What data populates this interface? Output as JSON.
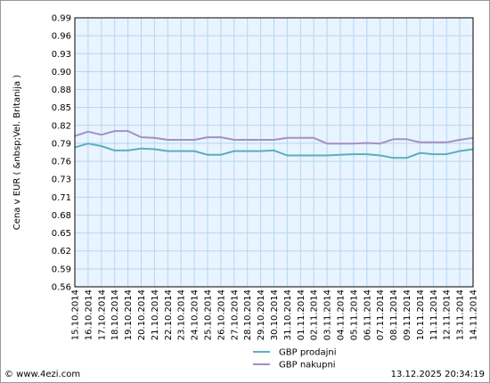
{
  "chart_data": {
    "type": "line",
    "ylabel": "Cena v EUR ( &nbsp;Vel. Britanija )",
    "xlabel": "",
    "ylim": [
      0.56,
      0.99
    ],
    "yticks": [
      "0.99",
      "0.96",
      "0.93",
      "0.90",
      "0.88",
      "0.85",
      "0.82",
      "0.79",
      "0.76",
      "0.73",
      "0.71",
      "0.68",
      "0.65",
      "0.62",
      "0.59",
      "0.56"
    ],
    "grid": true,
    "legend_position": "bottom",
    "categories": [
      "15.10.2014",
      "16.10.2014",
      "17.10.2014",
      "18.10.2014",
      "19.10.2014",
      "20.10.2014",
      "21.10.2014",
      "22.10.2014",
      "23.10.2014",
      "24.10.2014",
      "25.10.2014",
      "26.10.2014",
      "27.10.2014",
      "28.10.2014",
      "29.10.2014",
      "30.10.2014",
      "31.10.2014",
      "01.11.2014",
      "02.11.2014",
      "03.11.2014",
      "04.11.2014",
      "05.11.2014",
      "06.11.2014",
      "07.11.2014",
      "08.11.2014",
      "09.11.2014",
      "10.11.2014",
      "11.11.2014",
      "12.11.2014",
      "13.11.2014",
      "14.11.2014"
    ],
    "series": [
      {
        "name": "GBP prodajni",
        "color": "#5aaebf",
        "values": [
          0.783,
          0.789,
          0.785,
          0.778,
          0.778,
          0.781,
          0.78,
          0.777,
          0.777,
          0.777,
          0.771,
          0.771,
          0.777,
          0.777,
          0.777,
          0.778,
          0.77,
          0.77,
          0.77,
          0.77,
          0.771,
          0.772,
          0.772,
          0.77,
          0.766,
          0.766,
          0.774,
          0.772,
          0.772,
          0.777,
          0.78
        ]
      },
      {
        "name": "GBP nakupni",
        "color": "#a48fc4",
        "values": [
          0.801,
          0.808,
          0.803,
          0.809,
          0.809,
          0.799,
          0.798,
          0.795,
          0.795,
          0.795,
          0.799,
          0.799,
          0.795,
          0.795,
          0.795,
          0.795,
          0.798,
          0.798,
          0.798,
          0.789,
          0.789,
          0.789,
          0.79,
          0.789,
          0.796,
          0.796,
          0.791,
          0.791,
          0.791,
          0.795,
          0.798
        ]
      }
    ]
  },
  "footer": {
    "copyright": "© www.4ezi.com",
    "timestamp": "13.12.2025 20:34:19"
  }
}
